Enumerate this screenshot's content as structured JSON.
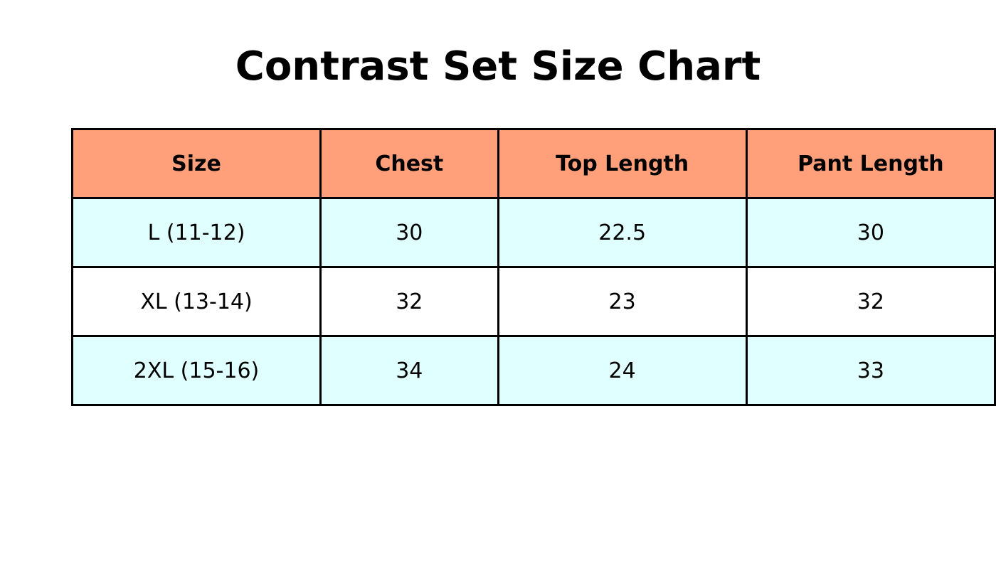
{
  "title": "Contrast Set Size Chart",
  "table": {
    "header": [
      "Size",
      "Chest",
      "Top Length",
      "Pant Length"
    ],
    "rows": [
      [
        "L (11-12)",
        "30",
        "22.5",
        "30"
      ],
      [
        "XL (13-14)",
        "32",
        "23",
        "32"
      ],
      [
        "2XL (15-16)",
        "34",
        "24",
        "33"
      ]
    ]
  }
}
